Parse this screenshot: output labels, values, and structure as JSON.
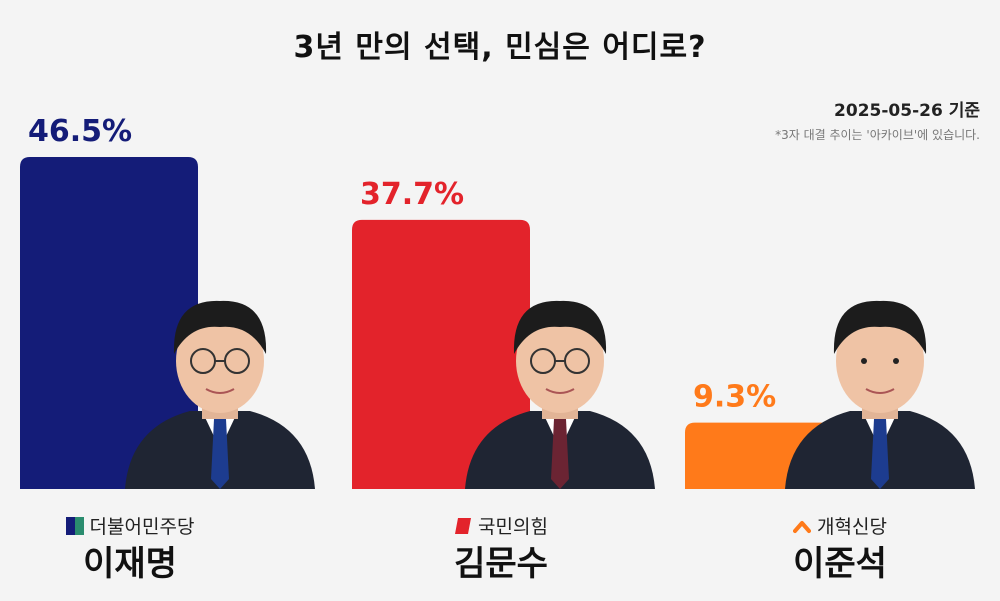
{
  "title": "3년 만의 선택, 민심은 어디로?",
  "date_label": "2025-05-26 기준",
  "note": "*3자 대결 추이는 '아카이브'에 있습니다.",
  "chart_data": {
    "type": "bar",
    "title": "3년 만의 선택, 민심은 어디로?",
    "categories": [
      "이재명",
      "김문수",
      "이준석"
    ],
    "values": [
      46.5,
      37.7,
      9.3
    ],
    "value_labels": [
      "46.5%",
      "37.7%",
      "9.3%"
    ],
    "ylim": [
      0,
      46.5
    ],
    "grid": false,
    "colors": [
      "#141c78",
      "#e3232b",
      "#ff7a1a"
    ]
  },
  "candidates": [
    {
      "name": "이재명",
      "party": "더불어민주당",
      "party_icon": "democratic-party-logo-icon",
      "color": "#141c78"
    },
    {
      "name": "김문수",
      "party": "국민의힘",
      "party_icon": "ppp-logo-icon",
      "color": "#e3232b"
    },
    {
      "name": "이준석",
      "party": "개혁신당",
      "party_icon": "reform-party-logo-icon",
      "color": "#ff7a1a"
    }
  ]
}
